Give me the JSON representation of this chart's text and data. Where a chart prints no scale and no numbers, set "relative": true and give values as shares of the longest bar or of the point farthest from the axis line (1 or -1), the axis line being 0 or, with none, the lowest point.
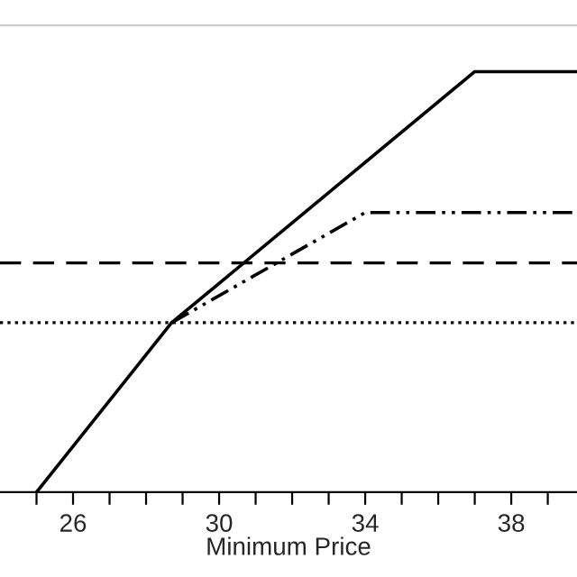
{
  "chart_data": {
    "type": "line",
    "relative": true,
    "xlabel": "Minimum Price",
    "xlim": [
      24,
      39.8
    ],
    "xticks": [
      {
        "value": 25,
        "label": null
      },
      26,
      {
        "value": 27,
        "label": null
      },
      {
        "value": 28,
        "label": null
      },
      {
        "value": 29,
        "label": null
      },
      30,
      {
        "value": 31,
        "label": null
      },
      {
        "value": 32,
        "label": null
      },
      {
        "value": 33,
        "label": null
      },
      34,
      {
        "value": 35,
        "label": null
      },
      {
        "value": 36,
        "label": null
      },
      {
        "value": 37,
        "label": null
      },
      38,
      {
        "value": 39,
        "label": null
      }
    ],
    "series": [
      {
        "color": "#000000",
        "line_style": "solid",
        "x": [
          25,
          28.7,
          37,
          39.8
        ],
        "values": [
          0,
          0.403,
          1,
          1
        ]
      },
      {
        "color": "#000000",
        "line_style": "dashdotdot",
        "x": [
          28.7,
          34,
          39.8
        ],
        "values": [
          0.403,
          0.665,
          0.665
        ]
      }
    ],
    "ref_lines": [
      {
        "axis": "y",
        "value": 0.545,
        "color": "#000000",
        "line_style": "dashed"
      },
      {
        "axis": "y",
        "value": 0.403,
        "color": "#000000",
        "line_style": "dotted"
      }
    ],
    "grid": false,
    "legend": false,
    "marker": "none"
  }
}
